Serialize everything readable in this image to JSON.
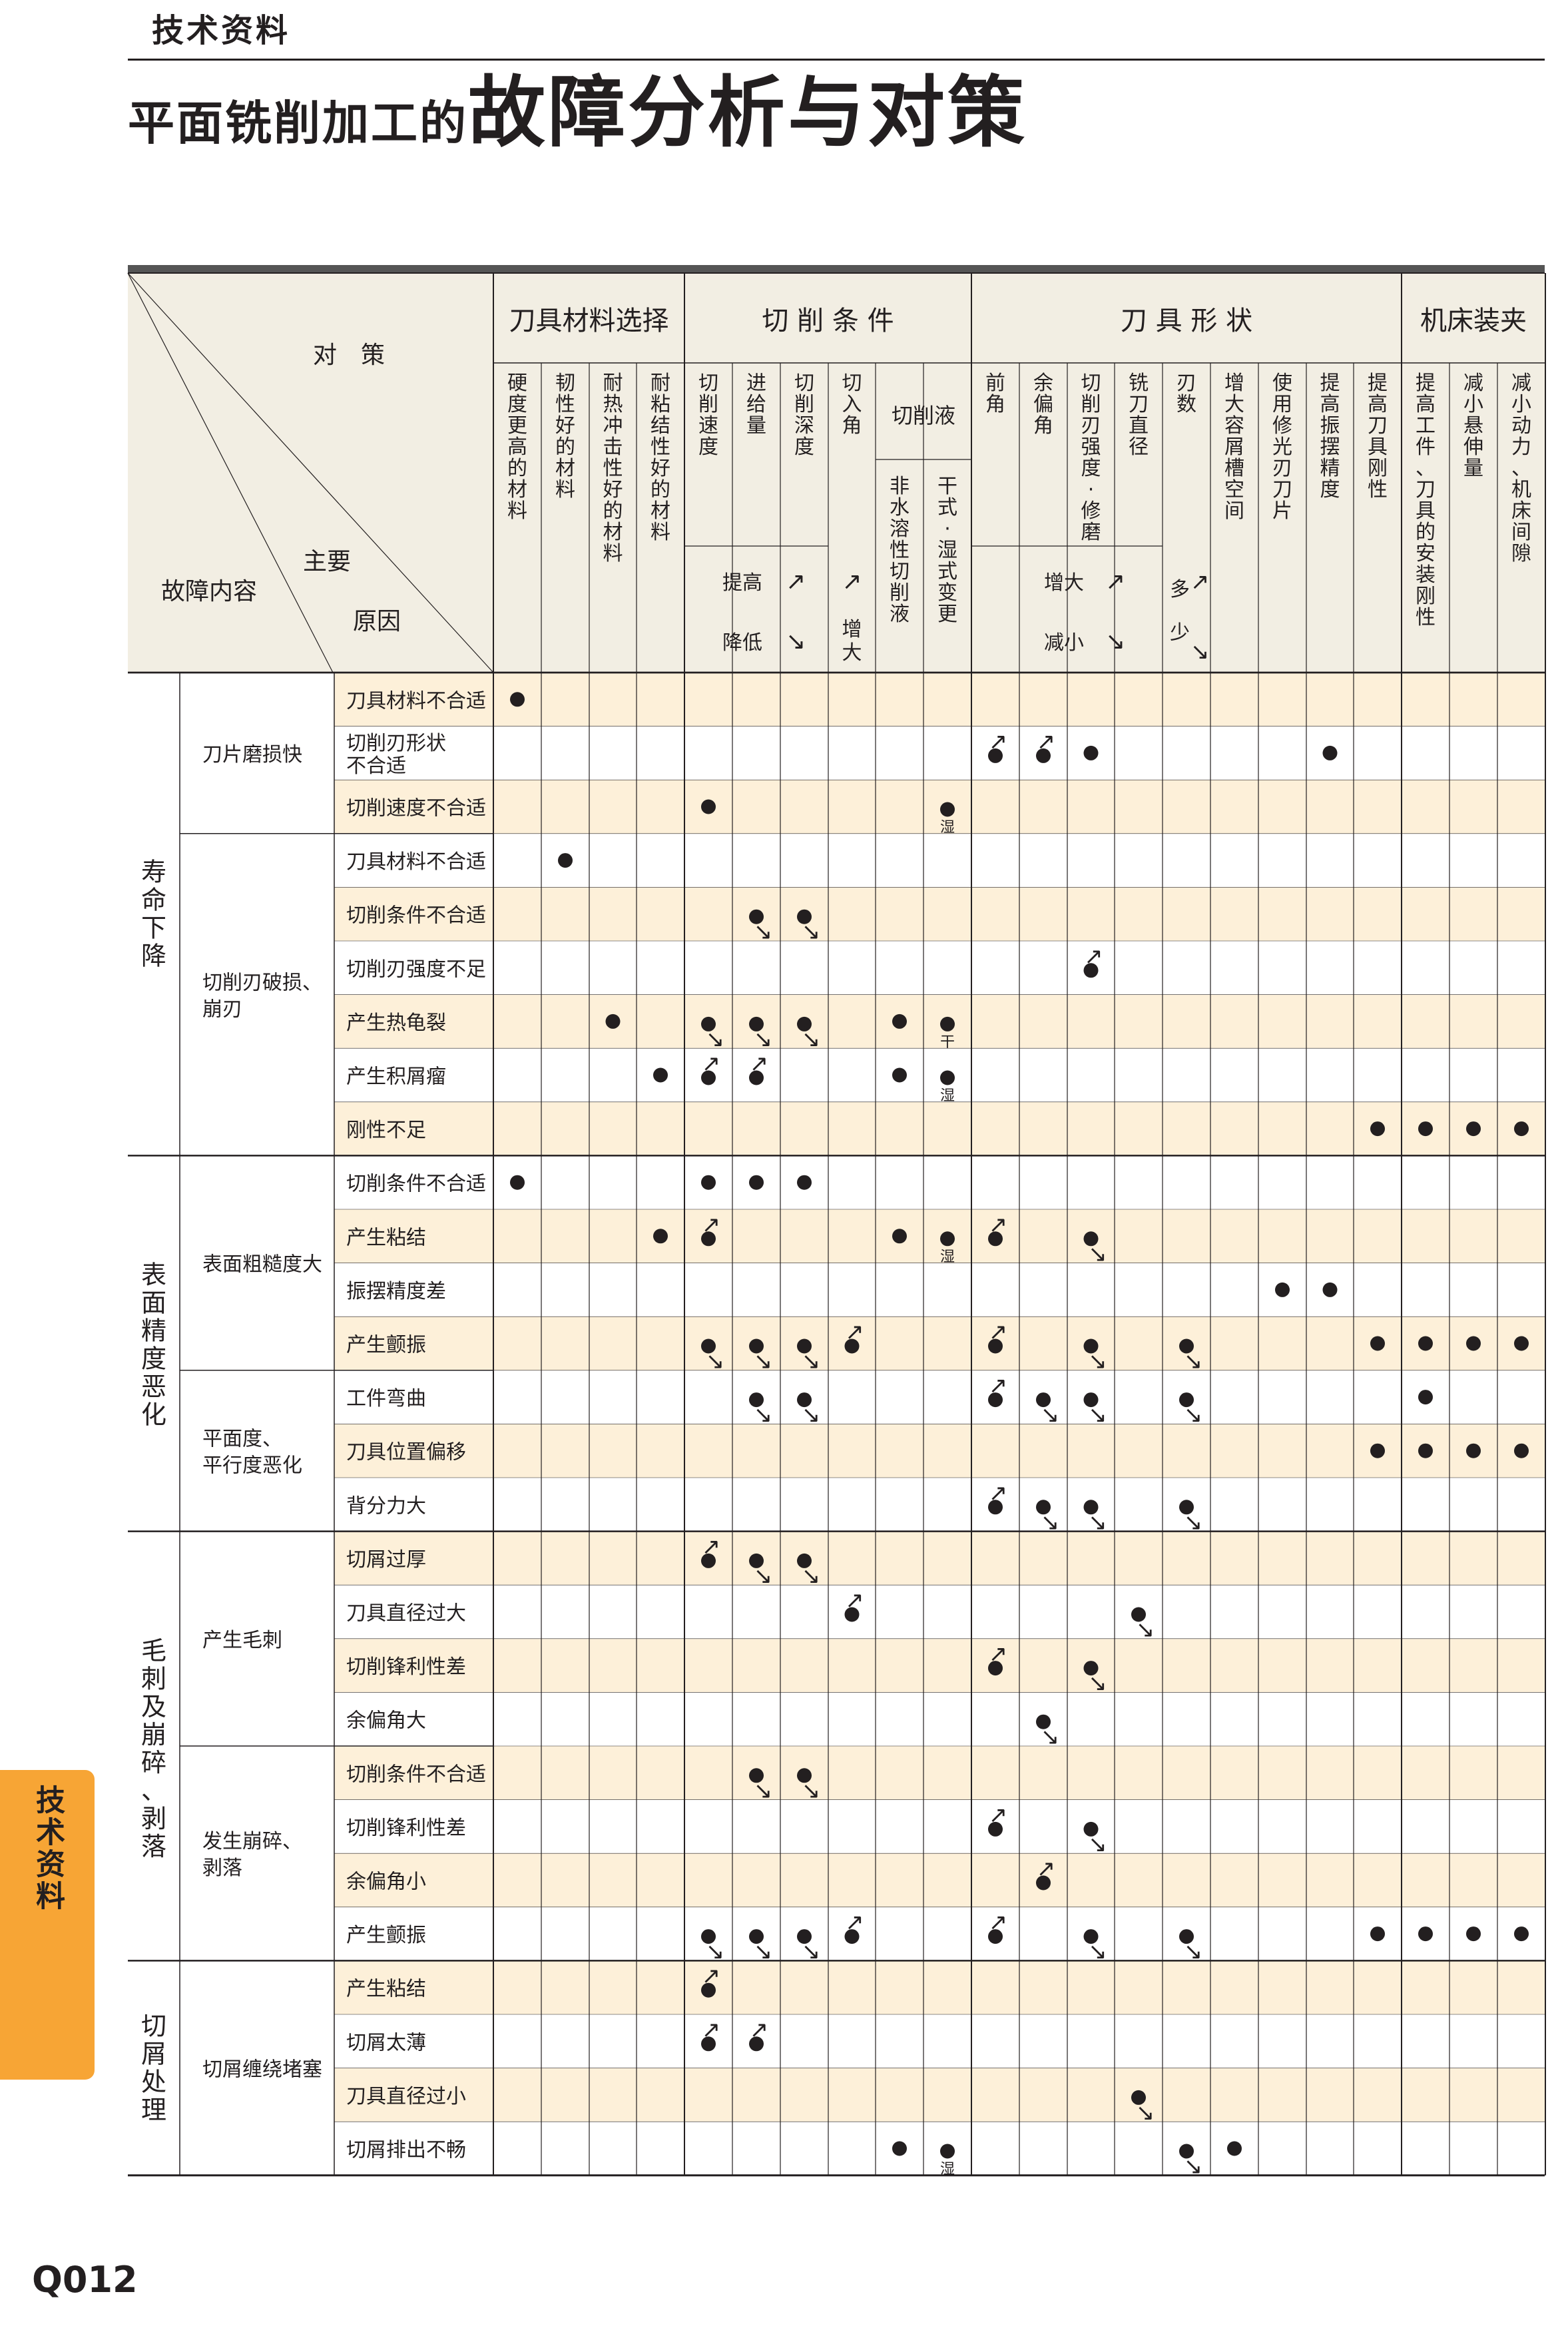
{
  "header": {
    "section_label": "技术资料",
    "title_part1": "平面铣削加工的",
    "title_part2": "故障分析与对策"
  },
  "colors": {
    "band": "#fdf0d9",
    "header_bg": "#f2eee3",
    "rule": "#231f20",
    "tab": "#f7a535"
  },
  "table": {
    "corner": {
      "countermeasures": "对　策",
      "main": "主要",
      "fault": "故障内容",
      "cause": "原因"
    },
    "groups": [
      "刀具材料选择",
      "切 削 条 件",
      "刀 具 形 状",
      "机床装夹"
    ],
    "columns": [
      "硬度更高的材料",
      "韧性好的材料",
      "耐热冲击性好的材料",
      "耐粘结性好的材料",
      "切削速度",
      "进给量",
      "切削深度",
      "切入角",
      "非水溶性切削液",
      "干式·湿式变更",
      "前角",
      "余偏角",
      "切削刃强度·修磨",
      "铣刀直径",
      "刃数",
      "增大容屑槽空间",
      "使用修光刃刀片",
      "提高振摆精度",
      "提高刀具刚性",
      "提高工件、刀具的安装刚性",
      "减小悬伸量",
      "减小动力、机床间隙"
    ],
    "sub_header": "切削液",
    "legend": {
      "up_label": "提高",
      "down_label": "降低",
      "in_label": "增大",
      "shape_up": "增大",
      "shape_down": "减小",
      "more": "多",
      "less": "少"
    },
    "categories": [
      {
        "name": "寿命下降",
        "groups": [
          {
            "name": "刀片磨损快",
            "causes": [
              "刀具材料不合适",
              "切削刃形状\n不合适",
              "切削速度不合适"
            ]
          },
          {
            "name": "切削刃破损、\n崩刃",
            "causes": [
              "刀具材料不合适",
              "切削条件不合适",
              "切削刃强度不足",
              "产生热龟裂",
              "产生积屑瘤",
              "刚性不足"
            ]
          }
        ]
      },
      {
        "name": "表面精度恶化",
        "groups": [
          {
            "name": "表面粗糙度大",
            "causes": [
              "切削条件不合适",
              "产生粘结",
              "振摆精度差",
              "产生颤振"
            ]
          },
          {
            "name": "平面度、\n平行度恶化",
            "causes": [
              "工件弯曲",
              "刀具位置偏移",
              "背分力大"
            ]
          }
        ]
      },
      {
        "name": "毛刺及崩碎、剥落",
        "groups": [
          {
            "name": "产生毛刺",
            "causes": [
              "切屑过厚",
              "刀具直径过大",
              "切削锋利性差",
              "余偏角大"
            ]
          },
          {
            "name": "发生崩碎、\n剥落",
            "causes": [
              "切削条件不合适",
              "切削锋利性差",
              "余偏角小",
              "产生颤振"
            ]
          }
        ]
      },
      {
        "name": "切屑处理",
        "groups": [
          {
            "name": "切屑缠绕堵塞",
            "causes": [
              "产生粘结",
              "切屑太薄",
              "刀具直径过小",
              "切屑排出不畅"
            ]
          }
        ]
      }
    ],
    "marks": [
      [
        "d",
        "",
        "",
        "",
        "",
        "",
        "",
        "",
        "",
        "",
        "",
        "",
        "",
        "",
        "",
        "",
        "",
        "",
        "",
        "",
        "",
        ""
      ],
      [
        "",
        "",
        "",
        "",
        "",
        "",
        "",
        "",
        "",
        "",
        "u",
        "u",
        "d",
        "",
        "",
        "",
        "",
        "d",
        "",
        "",
        "",
        ""
      ],
      [
        "",
        "",
        "",
        "",
        "d",
        "",
        "",
        "",
        "",
        "湿",
        "",
        "",
        "",
        "",
        "",
        "",
        "",
        "",
        "",
        "",
        "",
        ""
      ],
      [
        "",
        "d",
        "",
        "",
        "",
        "",
        "",
        "",
        "",
        "",
        "",
        "",
        "",
        "",
        "",
        "",
        "",
        "",
        "",
        "",
        "",
        ""
      ],
      [
        "",
        "",
        "",
        "",
        "",
        "v",
        "v",
        "",
        "",
        "",
        "",
        "",
        "",
        "",
        "",
        "",
        "",
        "",
        "",
        "",
        "",
        ""
      ],
      [
        "",
        "",
        "",
        "",
        "",
        "",
        "",
        "",
        "",
        "",
        "",
        "",
        "u",
        "",
        "",
        "",
        "",
        "",
        "",
        "",
        "",
        ""
      ],
      [
        "",
        "",
        "d",
        "",
        "v",
        "v",
        "v",
        "",
        "d",
        "干",
        "",
        "",
        "",
        "",
        "",
        "",
        "",
        "",
        "",
        "",
        "",
        ""
      ],
      [
        "",
        "",
        "",
        "d",
        "u",
        "u",
        "",
        "",
        "d",
        "湿",
        "",
        "",
        "",
        "",
        "",
        "",
        "",
        "",
        "",
        "",
        "",
        ""
      ],
      [
        "",
        "",
        "",
        "",
        "",
        "",
        "",
        "",
        "",
        "",
        "",
        "",
        "",
        "",
        "",
        "",
        "",
        "",
        "d",
        "d",
        "d",
        "d"
      ],
      [
        "d",
        "",
        "",
        "",
        "d",
        "d",
        "d",
        "",
        "",
        "",
        "",
        "",
        "",
        "",
        "",
        "",
        "",
        "",
        "",
        "",
        "",
        ""
      ],
      [
        "",
        "",
        "",
        "d",
        "u",
        "",
        "",
        "",
        "d",
        "湿",
        "u",
        "",
        "v",
        "",
        "",
        "",
        "",
        "",
        "",
        "",
        "",
        ""
      ],
      [
        "",
        "",
        "",
        "",
        "",
        "",
        "",
        "",
        "",
        "",
        "",
        "",
        "",
        "",
        "",
        "",
        "d",
        "d",
        "",
        "",
        "",
        ""
      ],
      [
        "",
        "",
        "",
        "",
        "v",
        "v",
        "v",
        "u",
        "",
        "",
        "u",
        "",
        "v",
        "",
        "v",
        "",
        "",
        "",
        "d",
        "d",
        "d",
        "d"
      ],
      [
        "",
        "",
        "",
        "",
        "",
        "v",
        "v",
        "",
        "",
        "",
        "u",
        "v",
        "v",
        "",
        "v",
        "",
        "",
        "",
        "",
        "d",
        "",
        ""
      ],
      [
        "",
        "",
        "",
        "",
        "",
        "",
        "",
        "",
        "",
        "",
        "",
        "",
        "",
        "",
        "",
        "",
        "",
        "",
        "d",
        "d",
        "d",
        "d"
      ],
      [
        "",
        "",
        "",
        "",
        "",
        "",
        "",
        "",
        "",
        "",
        "u",
        "v",
        "v",
        "",
        "v",
        "",
        "",
        "",
        "",
        "",
        "",
        ""
      ],
      [
        "",
        "",
        "",
        "",
        "u",
        "v",
        "v",
        "",
        "",
        "",
        "",
        "",
        "",
        "",
        "",
        "",
        "",
        "",
        "",
        "",
        "",
        ""
      ],
      [
        "",
        "",
        "",
        "",
        "",
        "",
        "",
        "u",
        "",
        "",
        "",
        "",
        "",
        "v",
        "",
        "",
        "",
        "",
        "",
        "",
        "",
        ""
      ],
      [
        "",
        "",
        "",
        "",
        "",
        "",
        "",
        "",
        "",
        "",
        "u",
        "",
        "v",
        "",
        "",
        "",
        "",
        "",
        "",
        "",
        "",
        ""
      ],
      [
        "",
        "",
        "",
        "",
        "",
        "",
        "",
        "",
        "",
        "",
        "",
        "v",
        "",
        "",
        "",
        "",
        "",
        "",
        "",
        "",
        "",
        ""
      ],
      [
        "",
        "",
        "",
        "",
        "",
        "v",
        "v",
        "",
        "",
        "",
        "",
        "",
        "",
        "",
        "",
        "",
        "",
        "",
        "",
        "",
        "",
        ""
      ],
      [
        "",
        "",
        "",
        "",
        "",
        "",
        "",
        "",
        "",
        "",
        "u",
        "",
        "v",
        "",
        "",
        "",
        "",
        "",
        "",
        "",
        "",
        ""
      ],
      [
        "",
        "",
        "",
        "",
        "",
        "",
        "",
        "",
        "",
        "",
        "",
        "u",
        "",
        "",
        "",
        "",
        "",
        "",
        "",
        "",
        "",
        ""
      ],
      [
        "",
        "",
        "",
        "",
        "v",
        "v",
        "v",
        "u",
        "",
        "",
        "u",
        "",
        "v",
        "",
        "v",
        "",
        "",
        "",
        "d",
        "d",
        "d",
        "d"
      ],
      [
        "",
        "",
        "",
        "",
        "u",
        "",
        "",
        "",
        "",
        "",
        "",
        "",
        "",
        "",
        "",
        "",
        "",
        "",
        "",
        "",
        "",
        ""
      ],
      [
        "",
        "",
        "",
        "",
        "u",
        "u",
        "",
        "",
        "",
        "",
        "",
        "",
        "",
        "",
        "",
        "",
        "",
        "",
        "",
        "",
        "",
        ""
      ],
      [
        "",
        "",
        "",
        "",
        "",
        "",
        "",
        "",
        "",
        "",
        "",
        "",
        "",
        "v",
        "",
        "",
        "",
        "",
        "",
        "",
        "",
        ""
      ],
      [
        "",
        "",
        "",
        "",
        "",
        "",
        "",
        "",
        "d",
        "湿",
        "",
        "",
        "",
        "",
        "v",
        "d",
        "",
        "",
        "",
        "",
        "",
        ""
      ]
    ]
  },
  "side_tab": "技术资料",
  "page_number": "Q012"
}
